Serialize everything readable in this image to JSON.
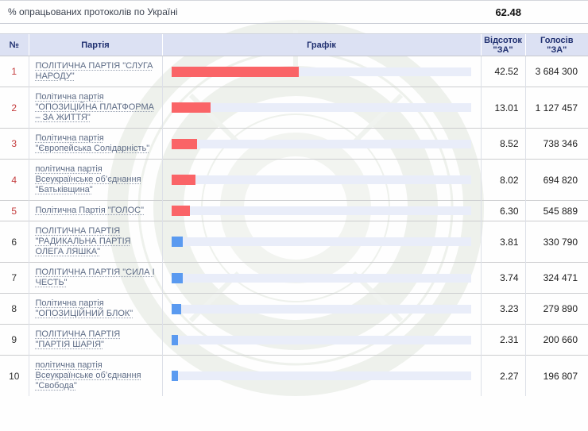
{
  "strip": {
    "label": "% опрацьованих протоколів по Україні",
    "value": "62.48"
  },
  "columns": {
    "num": "№",
    "party": "Партія",
    "chart": "Графік",
    "percent_l1": "Відсоток",
    "percent_l2": "\"ЗА\"",
    "votes_l1": "Голосів",
    "votes_l2": "\"ЗА\""
  },
  "colors": {
    "leader_bar": "#fa6467",
    "other_bar": "#579aef0",
    "bar_red": "#fa6467",
    "bar_blue": "#5a9af0",
    "track": "#e9edf9"
  },
  "rows": [
    {
      "num": "1",
      "party": "ПОЛІТИЧНА ПАРТІЯ \"СЛУГА НАРОДУ\"",
      "percent": "42.52",
      "votes": "3 684 300",
      "bar_color": "#fa6467"
    },
    {
      "num": "2",
      "party": "Політична партія \"ОПОЗИЦІЙНА ПЛАТФОРМА – ЗА ЖИТТЯ\"",
      "percent": "13.01",
      "votes": "1 127 457",
      "bar_color": "#fa6467"
    },
    {
      "num": "3",
      "party": "Політична партія \"Європейська Солідарність\"",
      "percent": "8.52",
      "votes": "738 346",
      "bar_color": "#fa6467"
    },
    {
      "num": "4",
      "party": "політична партія Всеукраїнське об’єднання \"Батьківщина\"",
      "percent": "8.02",
      "votes": "694 820",
      "bar_color": "#fa6467"
    },
    {
      "num": "5",
      "party": "Політична Партія \"ГОЛОС\"",
      "percent": "6.30",
      "votes": "545 889",
      "bar_color": "#fa6467"
    },
    {
      "num": "6",
      "party": "ПОЛІТИЧНА ПАРТІЯ \"РАДИКАЛЬНА ПАРТІЯ ОЛЕГА ЛЯШКА\"",
      "percent": "3.81",
      "votes": "330 790",
      "bar_color": "#5a9af0"
    },
    {
      "num": "7",
      "party": "ПОЛІТИЧНА ПАРТІЯ \"СИЛА І ЧЕСТЬ\"",
      "percent": "3.74",
      "votes": "324 471",
      "bar_color": "#5a9af0"
    },
    {
      "num": "8",
      "party": "Політична партія \"ОПОЗИЦІЙНИЙ БЛОК\"",
      "percent": "3.23",
      "votes": "279 890",
      "bar_color": "#5a9af0"
    },
    {
      "num": "9",
      "party": "ПОЛІТИЧНА ПАРТІЯ \"ПАРТІЯ ШАРІЯ\"",
      "percent": "2.31",
      "votes": "200 660",
      "bar_color": "#5a9af0"
    },
    {
      "num": "10",
      "party": "політична партія Всеукраїнське об’єднання \"Свобода\"",
      "percent": "2.27",
      "votes": "196 807",
      "bar_color": "#5a9af0"
    }
  ]
}
